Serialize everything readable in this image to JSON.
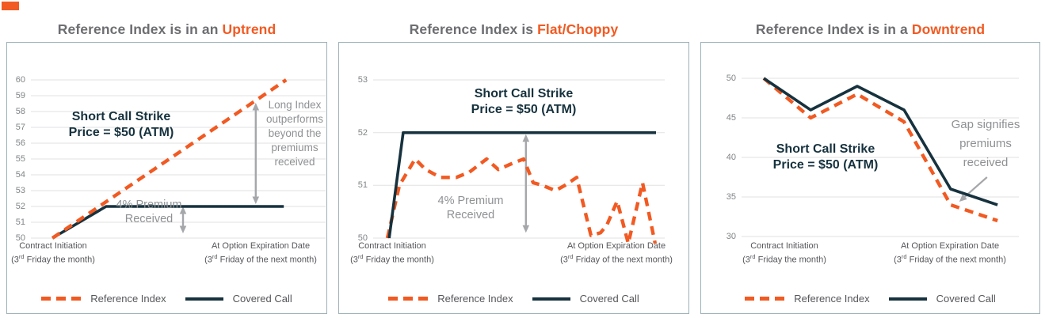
{
  "colors": {
    "accent": "#F15A22",
    "navy": "#16323E",
    "title_gray": "#6D6E71",
    "annotation_gray": "#8F9194",
    "axis_text": "#55565A",
    "tick_text": "#808487",
    "gridline": "#E2E2E3",
    "panel_border": "#9DB1B9",
    "arrow": "#A5A7AA"
  },
  "x_axis": {
    "left_line1": "Contract Initiation",
    "left_line2_prefix": "(3",
    "left_line2_sup": "rd",
    "left_line2_rest": " Friday the month)",
    "right_line1": "At Option Expiration Date",
    "right_line2_prefix": "(3",
    "right_line2_sup": "rd",
    "right_line2_rest": " Friday of the next month)"
  },
  "legend": {
    "reference_index": "Reference Index",
    "covered_call": "Covered Call"
  },
  "chart_data": [
    {
      "type": "line",
      "title_prefix": "Reference Index is in an ",
      "title_highlight": "Uptrend",
      "title": "Reference Index is in an Uptrend",
      "ylim": [
        50,
        60
      ],
      "y_ticks": [
        50,
        51,
        52,
        53,
        54,
        55,
        56,
        57,
        58,
        59,
        60
      ],
      "x_categories": [
        "Contract Initiation (3rd Friday the month)",
        "At Option Expiration Date (3rd Friday of the next month)"
      ],
      "legend_position": "bottom",
      "grid": true,
      "series": [
        {
          "name": "Covered Call",
          "color": "#16323E",
          "style": "solid",
          "x_pct": [
            7.3,
            25.5,
            85.8
          ],
          "values": [
            50,
            52,
            52
          ]
        },
        {
          "name": "Reference Index",
          "color": "#F15A22",
          "style": "dashed",
          "x_pct": [
            7.3,
            86.6
          ],
          "values": [
            50,
            60
          ]
        }
      ],
      "annotations": {
        "strike_line1": "Short Call Strike",
        "strike_line2": "Price = $50 (ATM)",
        "premium_line1": "4% Premium",
        "premium_line2": "Received",
        "side_note": [
          "Long Index",
          "outperforms",
          "beyond the",
          "premiums",
          "received"
        ]
      },
      "arrows": [
        {
          "kind": "double-vertical",
          "x_pct": 51.6,
          "v_from": 52.0,
          "v_to": 50.3
        },
        {
          "kind": "double-vertical",
          "x_pct": 76.3,
          "v_from": 58.55,
          "v_to": 52.15
        }
      ]
    },
    {
      "type": "line",
      "title_prefix": "Reference Index is ",
      "title_highlight": "Flat/Choppy",
      "title": "Reference Index is Flat/Choppy",
      "ylim": [
        50,
        53
      ],
      "y_ticks": [
        50,
        51,
        52,
        53
      ],
      "x_categories": [
        "Contract Initiation (3rd Friday the month)",
        "At Option Expiration Date (3rd Friday of the next month)"
      ],
      "legend_position": "bottom",
      "grid": true,
      "series": [
        {
          "name": "Reference Index",
          "color": "#F15A22",
          "style": "dashed",
          "x_pct": [
            4.9,
            9,
            14.4,
            18,
            23.1,
            28.5,
            33,
            38.9,
            42.9,
            47,
            51.6,
            54.9,
            58,
            62.5,
            65.8,
            69.8,
            74.7,
            78,
            80.2,
            83.7,
            87.5,
            92.4,
            96.7
          ],
          "values": [
            50.0,
            51.0,
            51.5,
            51.3,
            51.15,
            51.15,
            51.25,
            51.5,
            51.3,
            51.4,
            51.5,
            51.05,
            51.0,
            50.9,
            51.0,
            51.15,
            50.05,
            50.1,
            50.25,
            50.7,
            49.9,
            51.05,
            49.9
          ]
        },
        {
          "name": "Covered Call",
          "color": "#16323E",
          "style": "solid",
          "x_pct": [
            5.5,
            10.3,
            97
          ],
          "values": [
            50,
            52,
            52
          ]
        }
      ],
      "annotations": {
        "strike_line1": "Short Call Strike",
        "strike_line2": "Price = $50 (ATM)",
        "premium_line1": "4% Premium",
        "premium_line2": "Received"
      },
      "arrows": [
        {
          "kind": "double-vertical",
          "x_pct": 52.4,
          "v_from": 51.97,
          "v_to": 50.1
        }
      ]
    },
    {
      "type": "line",
      "title_prefix": "Reference Index is in a ",
      "title_highlight": "Downtrend",
      "title": "Reference Index is in a Downtrend",
      "ylim": [
        30,
        50
      ],
      "y_ticks": [
        30,
        35,
        40,
        45,
        50
      ],
      "x_categories": [
        "Contract Initiation (3rd Friday the month)",
        "At Option Expiration Date (3rd Friday of the next month)"
      ],
      "legend_position": "bottom",
      "grid": true,
      "series": [
        {
          "name": "Reference Index",
          "color": "#F15A22",
          "style": "dashed",
          "x_pct": [
            8,
            24.9,
            41.7,
            58.6,
            75.4,
            92.3
          ],
          "values": [
            50,
            45,
            48,
            44.5,
            34,
            32
          ]
        },
        {
          "name": "Covered Call",
          "color": "#16323E",
          "style": "solid",
          "x_pct": [
            8,
            24.9,
            41.7,
            58.6,
            75.4,
            92.3
          ],
          "values": [
            50,
            46,
            49,
            46,
            36,
            34
          ]
        }
      ],
      "annotations": {
        "strike_line1": "Short Call Strike",
        "strike_line2": "Price = $50 (ATM)",
        "gap_note": [
          "Gap signifies",
          "premiums",
          "received"
        ]
      },
      "arrows": [
        {
          "kind": "single",
          "from_x_pct": 88.5,
          "from_v": 37.5,
          "to_x_pct": 78.5,
          "to_v": 34.4
        }
      ]
    }
  ]
}
